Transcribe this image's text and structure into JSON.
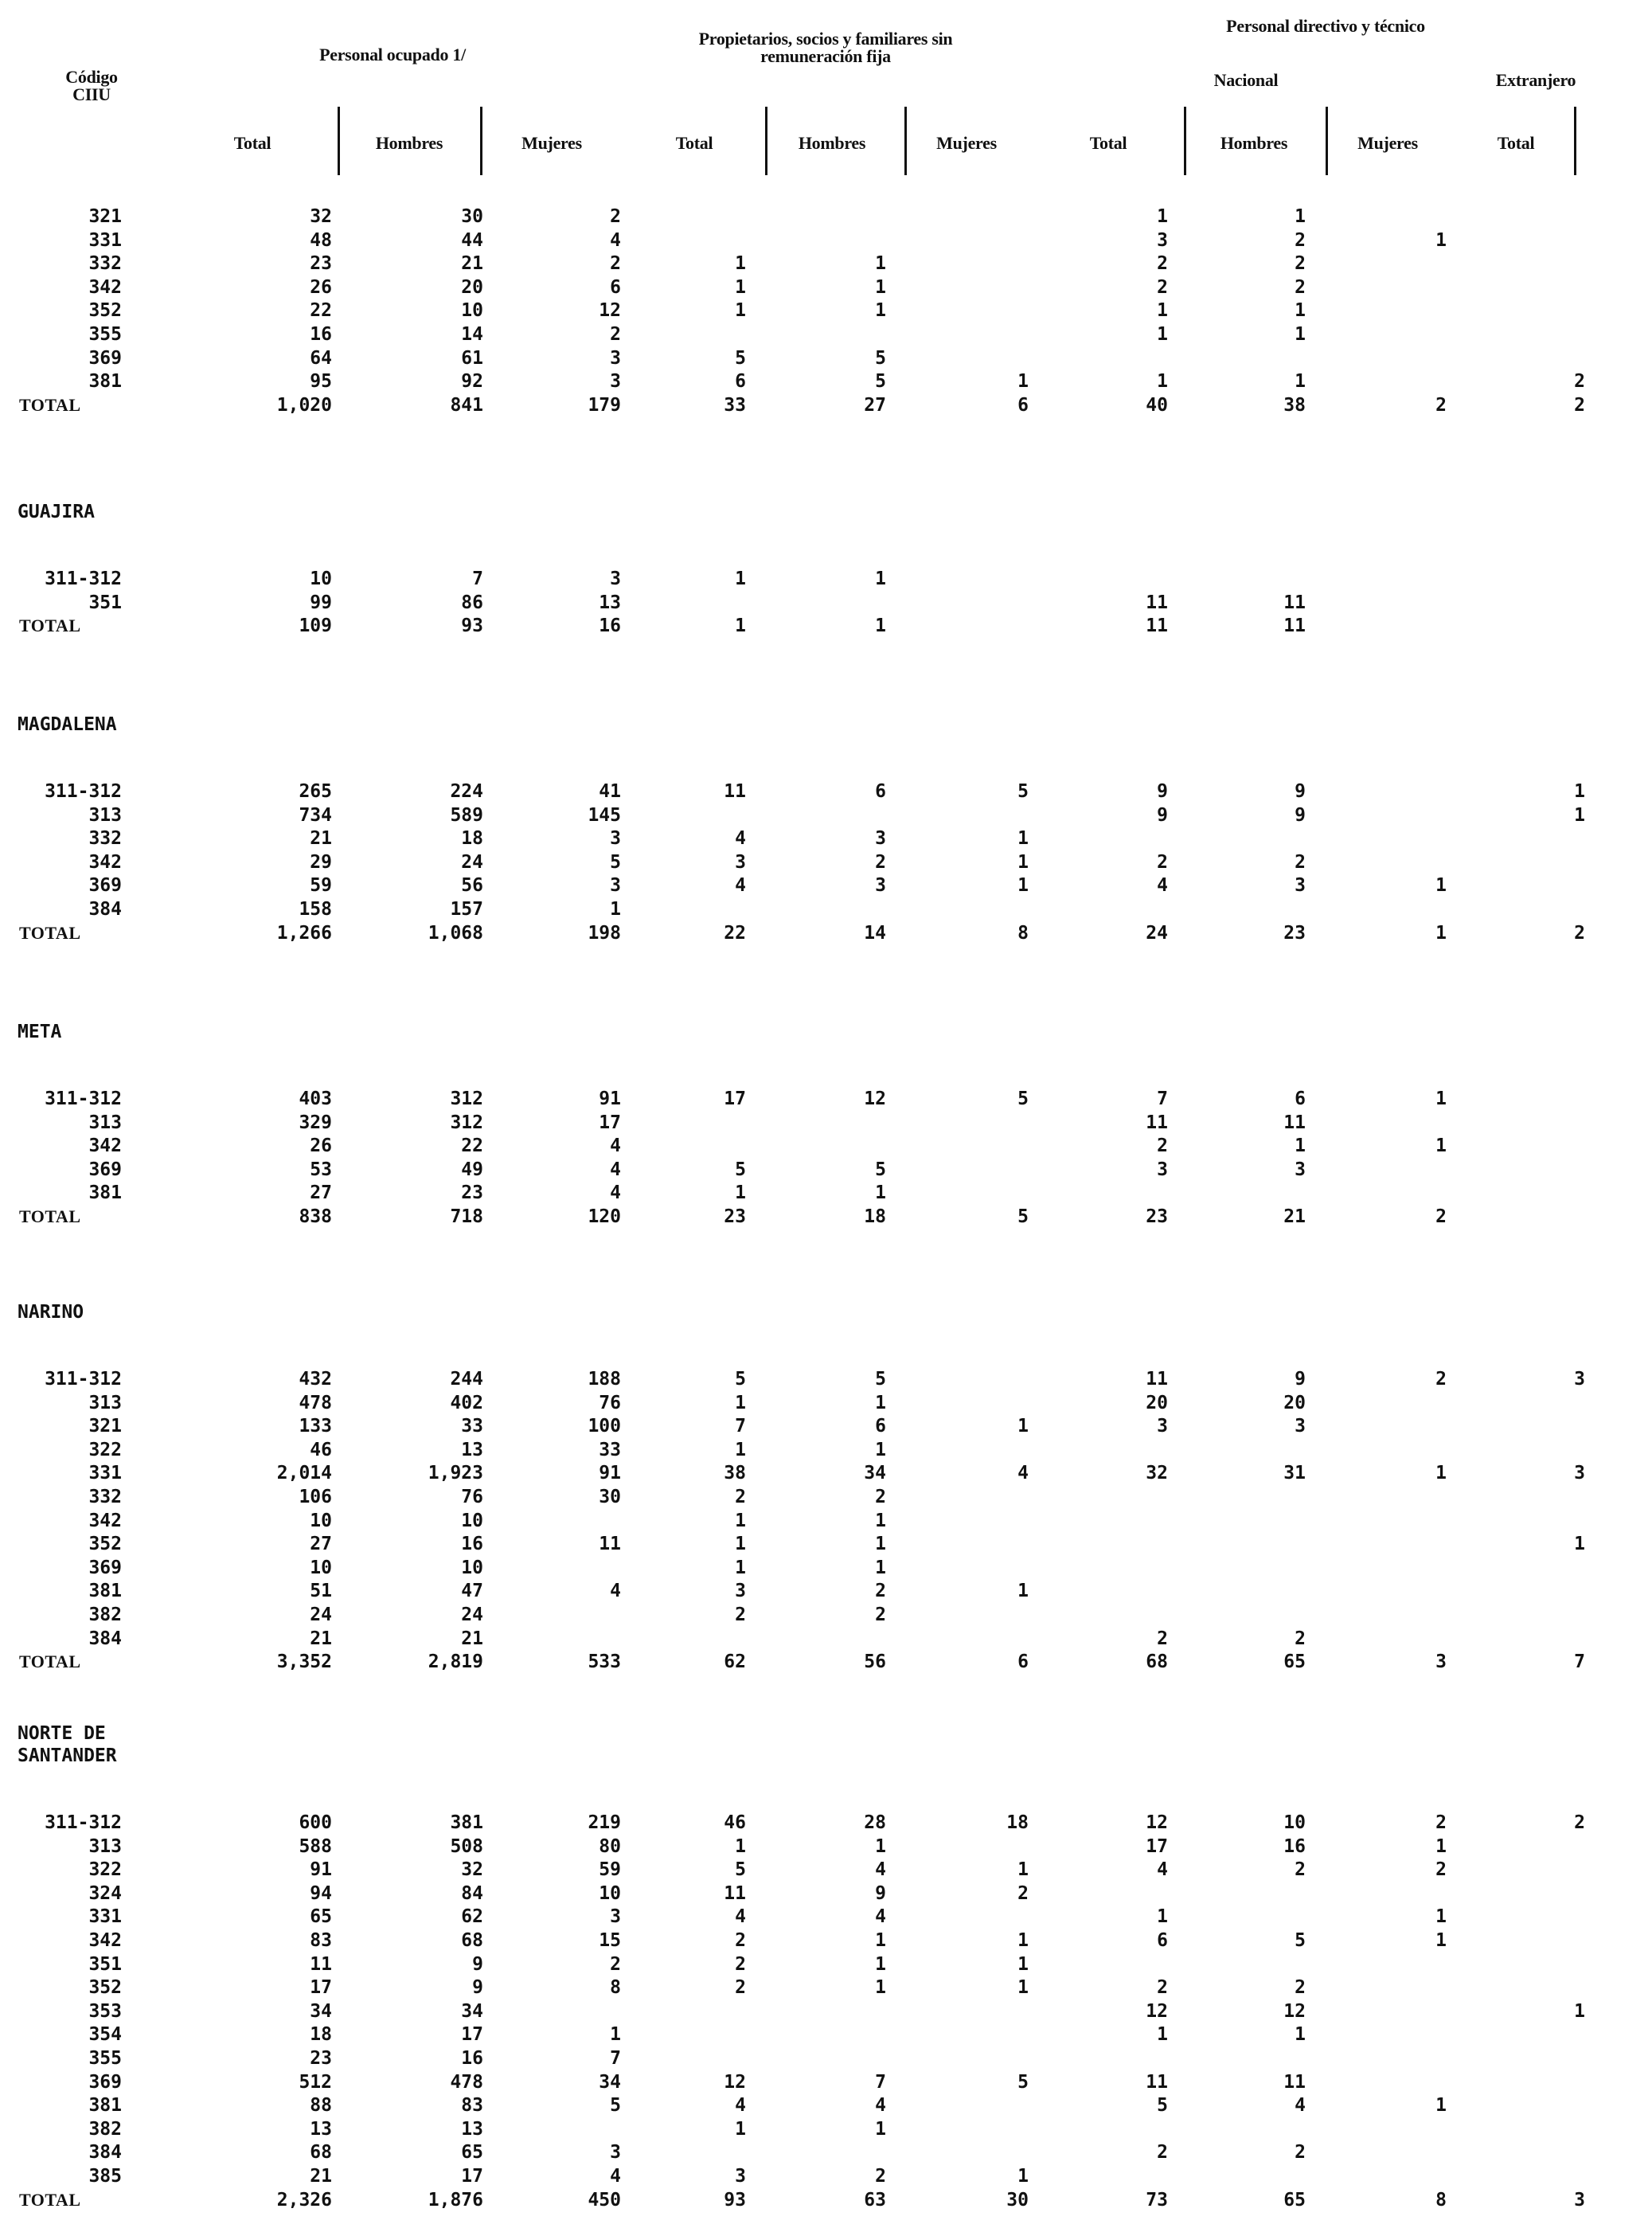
{
  "header": {
    "codigo": "Código",
    "ciiu": "CIIU",
    "personal_ocupado": "Personal ocupado 1/",
    "propietarios": "Propietarios, socios y familiares sin remuneración fija",
    "personal_directivo": "Personal directivo y técnico",
    "nacional": "Nacional",
    "extranjero": "Extranjero",
    "columns": [
      "Total",
      "Hombres",
      "Mujeres",
      "Total",
      "Hombres",
      "Mujeres",
      "Total",
      "Hombres",
      "Mujeres",
      "Total"
    ]
  },
  "sections": [
    {
      "name": "",
      "rows": [
        {
          "code": "321",
          "v": [
            "32",
            "30",
            "2",
            "",
            "",
            "",
            "1",
            "1",
            "",
            ""
          ]
        },
        {
          "code": "331",
          "v": [
            "48",
            "44",
            "4",
            "",
            "",
            "",
            "3",
            "2",
            "1",
            ""
          ]
        },
        {
          "code": "332",
          "v": [
            "23",
            "21",
            "2",
            "1",
            "1",
            "",
            "2",
            "2",
            "",
            ""
          ]
        },
        {
          "code": "342",
          "v": [
            "26",
            "20",
            "6",
            "1",
            "1",
            "",
            "2",
            "2",
            "",
            ""
          ]
        },
        {
          "code": "352",
          "v": [
            "22",
            "10",
            "12",
            "1",
            "1",
            "",
            "1",
            "1",
            "",
            ""
          ]
        },
        {
          "code": "355",
          "v": [
            "16",
            "14",
            "2",
            "",
            "",
            "",
            "1",
            "1",
            "",
            ""
          ]
        },
        {
          "code": "369",
          "v": [
            "64",
            "61",
            "3",
            "5",
            "5",
            "",
            "",
            "",
            "",
            ""
          ]
        },
        {
          "code": "381",
          "v": [
            "95",
            "92",
            "3",
            "6",
            "5",
            "1",
            "1",
            "1",
            "",
            "2"
          ]
        }
      ],
      "total": {
        "label": "TOTAL",
        "v": [
          "1,020",
          "841",
          "179",
          "33",
          "27",
          "6",
          "40",
          "38",
          "2",
          "2"
        ]
      }
    },
    {
      "name": "GUAJIRA",
      "rows": [
        {
          "code": "311-312",
          "v": [
            "10",
            "7",
            "3",
            "1",
            "1",
            "",
            "",
            "",
            "",
            ""
          ]
        },
        {
          "code": "351",
          "v": [
            "99",
            "86",
            "13",
            "",
            "",
            "",
            "11",
            "11",
            "",
            ""
          ]
        }
      ],
      "total": {
        "label": "TOTAL",
        "v": [
          "109",
          "93",
          "16",
          "1",
          "1",
          "",
          "11",
          "11",
          "",
          ""
        ]
      }
    },
    {
      "name": "MAGDALENA",
      "rows": [
        {
          "code": "311-312",
          "v": [
            "265",
            "224",
            "41",
            "11",
            "6",
            "5",
            "9",
            "9",
            "",
            "1"
          ]
        },
        {
          "code": "313",
          "v": [
            "734",
            "589",
            "145",
            "",
            "",
            "",
            "9",
            "9",
            "",
            "1"
          ]
        },
        {
          "code": "332",
          "v": [
            "21",
            "18",
            "3",
            "4",
            "3",
            "1",
            "",
            "",
            "",
            ""
          ]
        },
        {
          "code": "342",
          "v": [
            "29",
            "24",
            "5",
            "3",
            "2",
            "1",
            "2",
            "2",
            "",
            ""
          ]
        },
        {
          "code": "369",
          "v": [
            "59",
            "56",
            "3",
            "4",
            "3",
            "1",
            "4",
            "3",
            "1",
            ""
          ]
        },
        {
          "code": "384",
          "v": [
            "158",
            "157",
            "1",
            "",
            "",
            "",
            "",
            "",
            "",
            ""
          ]
        }
      ],
      "total": {
        "label": "TOTAL",
        "v": [
          "1,266",
          "1,068",
          "198",
          "22",
          "14",
          "8",
          "24",
          "23",
          "1",
          "2"
        ]
      }
    },
    {
      "name": "META",
      "rows": [
        {
          "code": "311-312",
          "v": [
            "403",
            "312",
            "91",
            "17",
            "12",
            "5",
            "7",
            "6",
            "1",
            ""
          ]
        },
        {
          "code": "313",
          "v": [
            "329",
            "312",
            "17",
            "",
            "",
            "",
            "11",
            "11",
            "",
            ""
          ]
        },
        {
          "code": "342",
          "v": [
            "26",
            "22",
            "4",
            "",
            "",
            "",
            "2",
            "1",
            "1",
            ""
          ]
        },
        {
          "code": "369",
          "v": [
            "53",
            "49",
            "4",
            "5",
            "5",
            "",
            "3",
            "3",
            "",
            ""
          ]
        },
        {
          "code": "381",
          "v": [
            "27",
            "23",
            "4",
            "1",
            "1",
            "",
            "",
            "",
            "",
            ""
          ]
        }
      ],
      "total": {
        "label": "TOTAL",
        "v": [
          "838",
          "718",
          "120",
          "23",
          "18",
          "5",
          "23",
          "21",
          "2",
          ""
        ]
      }
    },
    {
      "name": "NARINO",
      "rows": [
        {
          "code": "311-312",
          "v": [
            "432",
            "244",
            "188",
            "5",
            "5",
            "",
            "11",
            "9",
            "2",
            "3"
          ]
        },
        {
          "code": "313",
          "v": [
            "478",
            "402",
            "76",
            "1",
            "1",
            "",
            "20",
            "20",
            "",
            ""
          ]
        },
        {
          "code": "321",
          "v": [
            "133",
            "33",
            "100",
            "7",
            "6",
            "1",
            "3",
            "3",
            "",
            ""
          ]
        },
        {
          "code": "322",
          "v": [
            "46",
            "13",
            "33",
            "1",
            "1",
            "",
            "",
            "",
            "",
            ""
          ]
        },
        {
          "code": "331",
          "v": [
            "2,014",
            "1,923",
            "91",
            "38",
            "34",
            "4",
            "32",
            "31",
            "1",
            "3"
          ]
        },
        {
          "code": "332",
          "v": [
            "106",
            "76",
            "30",
            "2",
            "2",
            "",
            "",
            "",
            "",
            ""
          ]
        },
        {
          "code": "342",
          "v": [
            "10",
            "10",
            "",
            "1",
            "1",
            "",
            "",
            "",
            "",
            ""
          ]
        },
        {
          "code": "352",
          "v": [
            "27",
            "16",
            "11",
            "1",
            "1",
            "",
            "",
            "",
            "",
            "1"
          ]
        },
        {
          "code": "369",
          "v": [
            "10",
            "10",
            "",
            "1",
            "1",
            "",
            "",
            "",
            "",
            ""
          ]
        },
        {
          "code": "381",
          "v": [
            "51",
            "47",
            "4",
            "3",
            "2",
            "1",
            "",
            "",
            "",
            ""
          ]
        },
        {
          "code": "382",
          "v": [
            "24",
            "24",
            "",
            "2",
            "2",
            "",
            "",
            "",
            "",
            ""
          ]
        },
        {
          "code": "384",
          "v": [
            "21",
            "21",
            "",
            "",
            "",
            "",
            "2",
            "2",
            "",
            ""
          ]
        }
      ],
      "total": {
        "label": "TOTAL",
        "v": [
          "3,352",
          "2,819",
          "533",
          "62",
          "56",
          "6",
          "68",
          "65",
          "3",
          "7"
        ]
      }
    },
    {
      "name": "NORTE DE\nSANTANDER",
      "rows": [
        {
          "code": "311-312",
          "v": [
            "600",
            "381",
            "219",
            "46",
            "28",
            "18",
            "12",
            "10",
            "2",
            "2"
          ]
        },
        {
          "code": "313",
          "v": [
            "588",
            "508",
            "80",
            "1",
            "1",
            "",
            "17",
            "16",
            "1",
            ""
          ]
        },
        {
          "code": "322",
          "v": [
            "91",
            "32",
            "59",
            "5",
            "4",
            "1",
            "4",
            "2",
            "2",
            ""
          ]
        },
        {
          "code": "324",
          "v": [
            "94",
            "84",
            "10",
            "11",
            "9",
            "2",
            "",
            "",
            "",
            ""
          ]
        },
        {
          "code": "331",
          "v": [
            "65",
            "62",
            "3",
            "4",
            "4",
            "",
            "1",
            "",
            "1",
            ""
          ]
        },
        {
          "code": "342",
          "v": [
            "83",
            "68",
            "15",
            "2",
            "1",
            "1",
            "6",
            "5",
            "1",
            ""
          ]
        },
        {
          "code": "351",
          "v": [
            "11",
            "9",
            "2",
            "2",
            "1",
            "1",
            "",
            "",
            "",
            ""
          ]
        },
        {
          "code": "352",
          "v": [
            "17",
            "9",
            "8",
            "2",
            "1",
            "1",
            "2",
            "2",
            "",
            ""
          ]
        },
        {
          "code": "353",
          "v": [
            "34",
            "34",
            "",
            "",
            "",
            "",
            "12",
            "12",
            "",
            "1"
          ]
        },
        {
          "code": "354",
          "v": [
            "18",
            "17",
            "1",
            "",
            "",
            "",
            "1",
            "1",
            "",
            ""
          ]
        },
        {
          "code": "355",
          "v": [
            "23",
            "16",
            "7",
            "",
            "",
            "",
            "",
            "",
            "",
            ""
          ]
        },
        {
          "code": "369",
          "v": [
            "512",
            "478",
            "34",
            "12",
            "7",
            "5",
            "11",
            "11",
            "",
            ""
          ]
        },
        {
          "code": "381",
          "v": [
            "88",
            "83",
            "5",
            "4",
            "4",
            "",
            "5",
            "4",
            "1",
            ""
          ]
        },
        {
          "code": "382",
          "v": [
            "13",
            "13",
            "",
            "1",
            "1",
            "",
            "",
            "",
            "",
            ""
          ]
        },
        {
          "code": "384",
          "v": [
            "68",
            "65",
            "3",
            "",
            "",
            "",
            "2",
            "2",
            "",
            ""
          ]
        },
        {
          "code": "385",
          "v": [
            "21",
            "17",
            "4",
            "3",
            "2",
            "1",
            "",
            "",
            "",
            ""
          ]
        }
      ],
      "total": {
        "label": "TOTAL",
        "v": [
          "2,326",
          "1,876",
          "450",
          "93",
          "63",
          "30",
          "73",
          "65",
          "8",
          "3"
        ]
      }
    }
  ]
}
